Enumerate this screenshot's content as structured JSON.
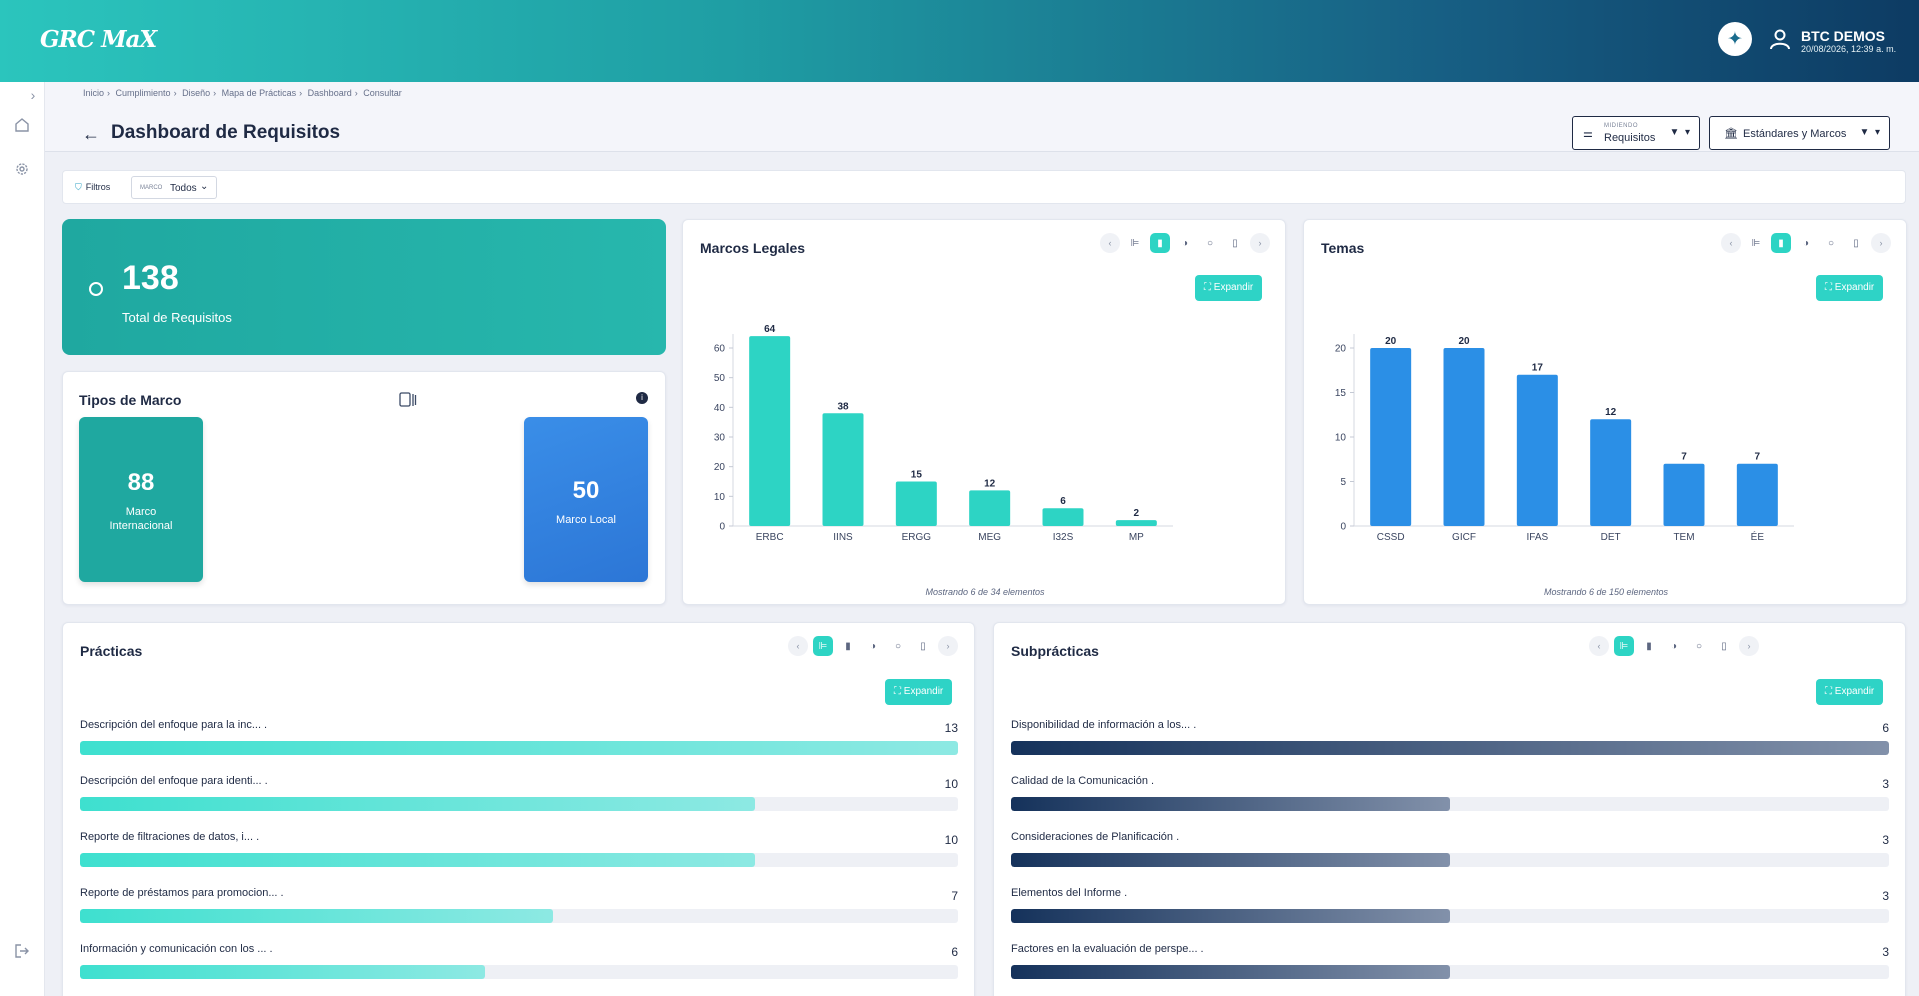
{
  "header": {
    "logo": "GRC MaX",
    "user_name": "BTC DEMOS",
    "user_date": "20/08/2026, 12:39 a. m."
  },
  "breadcrumb": [
    "Inicio",
    "Cumplimiento",
    "Diseño",
    "Mapa de Prácticas",
    "Dashboard",
    "Consultar"
  ],
  "page": {
    "title": "Dashboard de Requisitos",
    "measuring_label": "MIDIENDO",
    "measuring_value": "Requisitos",
    "standards_label": "Estándares y Marcos"
  },
  "filters": {
    "button_label": "Filtros",
    "chip_key": "MARCO",
    "chip_value": "Todos"
  },
  "total": {
    "value": "138",
    "label": "Total de Requisitos"
  },
  "tipos_marco": {
    "title": "Tipos de Marco",
    "tiles": [
      {
        "value": "88",
        "label": "Marco Internacional",
        "color": "#1fa8a0"
      },
      {
        "value": "50",
        "label": "Marco Local",
        "color": "#2f7fe0"
      }
    ]
  },
  "common": {
    "expand_label": "Expandir"
  },
  "marcos_legales": {
    "title": "Marcos Legales",
    "footer": "Mostrando 6 de 34 elementos"
  },
  "temas": {
    "title": "Temas",
    "footer": "Mostrando 6 de 150 elementos"
  },
  "practicas": {
    "title": "Prácticas",
    "max": 13,
    "items": [
      {
        "label": "Descripción del enfoque para la inc...",
        "value": 13
      },
      {
        "label": "Descripción del enfoque para identi...",
        "value": 10
      },
      {
        "label": "Reporte de filtraciones de datos, i...",
        "value": 10
      },
      {
        "label": "Reporte de préstamos para promocion...",
        "value": 7
      },
      {
        "label": "Información y comunicación con los ...",
        "value": 6
      }
    ]
  },
  "subpracticas": {
    "title": "Subprácticas",
    "max": 6,
    "items": [
      {
        "label": "Disponibilidad de información a los...",
        "value": 6
      },
      {
        "label": "Calidad de la Comunicación",
        "value": 3
      },
      {
        "label": "Consideraciones de Planificación",
        "value": 3
      },
      {
        "label": "Elementos del Informe",
        "value": 3
      },
      {
        "label": "Factores en la evaluación de perspe...",
        "value": 3
      }
    ]
  },
  "chart_data": [
    {
      "type": "bar",
      "title": "Marcos Legales",
      "categories": [
        "ERBC",
        "IINS",
        "ERGG",
        "MEG",
        "I32S",
        "MP"
      ],
      "values": [
        64,
        38,
        15,
        12,
        6,
        2
      ],
      "ylim": [
        0,
        60
      ],
      "yticks": [
        0,
        10,
        20,
        30,
        40,
        50,
        60
      ],
      "color": "#2dd4c4"
    },
    {
      "type": "bar",
      "title": "Temas",
      "categories": [
        "CSSD",
        "GICF",
        "IFAS",
        "DET",
        "TEM",
        "ÉE"
      ],
      "values": [
        20,
        20,
        17,
        12,
        7,
        7
      ],
      "ylim": [
        0,
        20
      ],
      "yticks": [
        0,
        5,
        10,
        15,
        20
      ],
      "color": "#2b8fe6"
    }
  ]
}
